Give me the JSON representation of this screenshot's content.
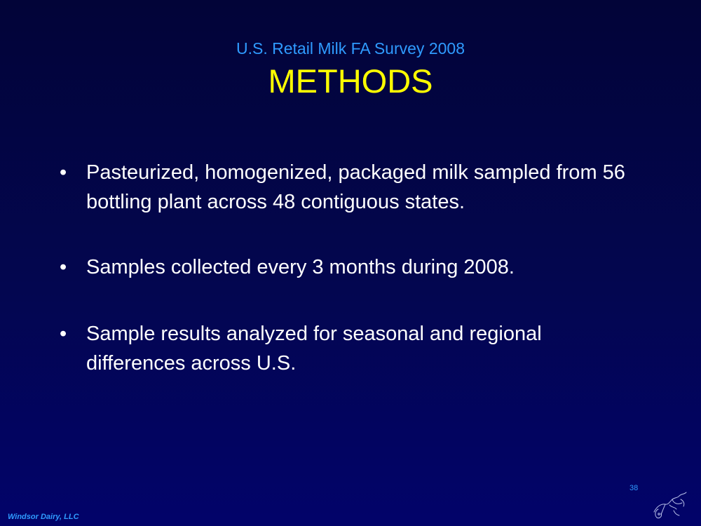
{
  "slide": {
    "subtitle": "U.S. Retail Milk FA Survey 2008",
    "title": "METHODS",
    "bullets": [
      {
        "marker": "•",
        "text": "Pasteurized, homogenized, packaged milk sampled from 56 bottling plant across 48 contiguous states."
      },
      {
        "marker": "•",
        "text": "Samples collected every 3 months during 2008."
      },
      {
        "marker": "•",
        "text": "Sample results analyzed for seasonal and regional differences across U.S."
      }
    ],
    "page_number": "38",
    "footer": "Windsor Dairy, LLC",
    "logo_icon": "cow-sketch-icon"
  },
  "colors": {
    "background_top": "#020438",
    "background_bottom": "#02036a",
    "subtitle": "#2f9bff",
    "title": "#ffff00",
    "body_text": "#ffffff"
  }
}
